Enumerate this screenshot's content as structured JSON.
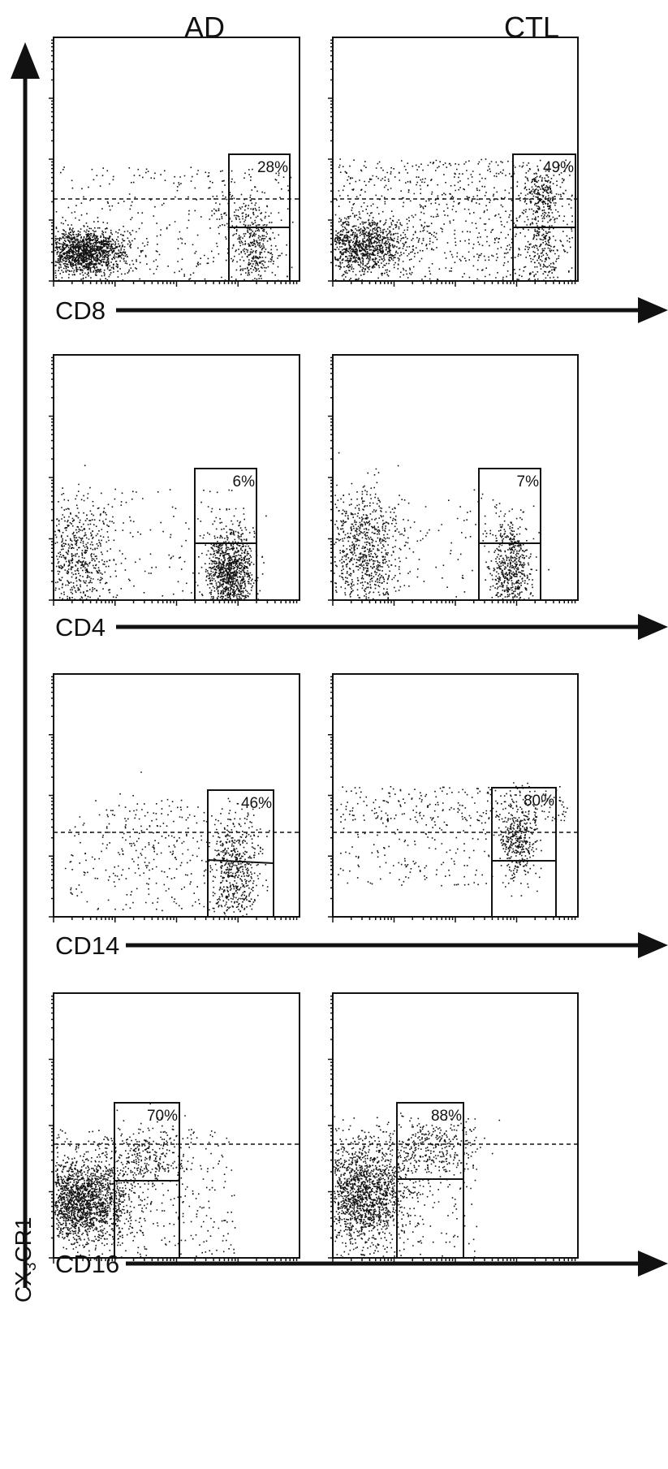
{
  "column_titles": [
    "AD",
    "CTL"
  ],
  "y_axis_label": {
    "main": "CX",
    "sub": "3",
    "rest": "CR1"
  },
  "chart_data": [
    {
      "type": "scatter",
      "marker": "CD8",
      "xlabel": "CD8",
      "ylabel": "CX3CR1",
      "panels": [
        {
          "column": "AD",
          "gate_percent": "28%"
        },
        {
          "column": "CTL",
          "gate_percent": "49%"
        }
      ]
    },
    {
      "type": "scatter",
      "marker": "CD4",
      "xlabel": "CD4",
      "ylabel": "CX3CR1",
      "panels": [
        {
          "column": "AD",
          "gate_percent": "6%"
        },
        {
          "column": "CTL",
          "gate_percent": "7%"
        }
      ]
    },
    {
      "type": "scatter",
      "marker": "CD14",
      "xlabel": "CD14",
      "ylabel": "CX3CR1",
      "panels": [
        {
          "column": "AD",
          "gate_percent": "46%"
        },
        {
          "column": "CTL",
          "gate_percent": "80%"
        }
      ]
    },
    {
      "type": "scatter",
      "marker": "CD16",
      "xlabel": "CD16",
      "ylabel": "CX3CR1",
      "panels": [
        {
          "column": "AD",
          "gate_percent": "70%"
        },
        {
          "column": "CTL",
          "gate_percent": "88%"
        }
      ]
    }
  ],
  "colors": {
    "ink": "#111111",
    "background": "#ffffff"
  }
}
